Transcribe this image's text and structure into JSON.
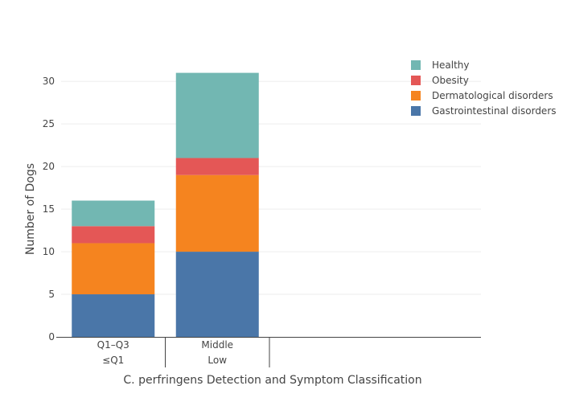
{
  "chart_data": {
    "type": "bar",
    "stacked": true,
    "title": "",
    "xlabel": "C. perfringens Detection and Symptom Classification",
    "ylabel": "Number of Dogs",
    "ylim": [
      0,
      32
    ],
    "yticks": [
      0,
      5,
      10,
      15,
      20,
      25,
      30
    ],
    "grid": true,
    "legend_position": "top-right",
    "categories": [
      {
        "top": "Q1–Q3",
        "bottom": "≤Q1"
      },
      {
        "top": "Middle",
        "bottom": "Low"
      }
    ],
    "series": [
      {
        "name": "Gastrointestinal disorders",
        "color": "#4a76a8",
        "values": [
          5,
          10
        ]
      },
      {
        "name": "Dermatological disorders",
        "color": "#f5841f",
        "values": [
          6,
          9
        ]
      },
      {
        "name": "Obesity",
        "color": "#e45756",
        "values": [
          2,
          2
        ]
      },
      {
        "name": "Healthy",
        "color": "#72b7b2",
        "values": [
          3,
          10
        ]
      }
    ]
  }
}
